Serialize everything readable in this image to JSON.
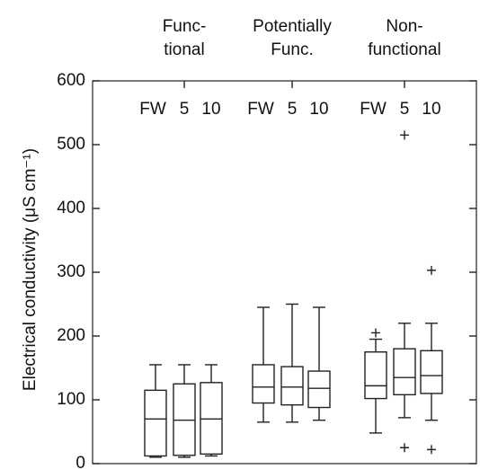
{
  "chart_data": {
    "type": "box",
    "ylabel": "Electrical conductivity (μS cm⁻¹)",
    "ylim": [
      0,
      600
    ],
    "yticks": [
      0,
      100,
      200,
      300,
      400,
      500,
      600
    ],
    "series_names": [
      "FW",
      "5",
      "10"
    ],
    "groups": [
      {
        "label": [
          "Func-",
          "tional"
        ],
        "boxes": [
          {
            "whislo": 10,
            "q1": 12,
            "med": 70,
            "q3": 115,
            "whishi": 155,
            "fliers": []
          },
          {
            "whislo": 10,
            "q1": 13,
            "med": 68,
            "q3": 125,
            "whishi": 155,
            "fliers": []
          },
          {
            "whislo": 12,
            "q1": 15,
            "med": 70,
            "q3": 127,
            "whishi": 155,
            "fliers": []
          }
        ]
      },
      {
        "label": [
          "Potentially",
          "Func."
        ],
        "boxes": [
          {
            "whislo": 65,
            "q1": 95,
            "med": 120,
            "q3": 155,
            "whishi": 245,
            "fliers": []
          },
          {
            "whislo": 65,
            "q1": 92,
            "med": 120,
            "q3": 152,
            "whishi": 250,
            "fliers": []
          },
          {
            "whislo": 68,
            "q1": 88,
            "med": 118,
            "q3": 145,
            "whishi": 245,
            "fliers": []
          }
        ]
      },
      {
        "label": [
          "Non-",
          "functional"
        ],
        "boxes": [
          {
            "whislo": 48,
            "q1": 102,
            "med": 122,
            "q3": 175,
            "whishi": 195,
            "fliers": [
              205
            ]
          },
          {
            "whislo": 72,
            "q1": 108,
            "med": 135,
            "q3": 180,
            "whishi": 220,
            "fliers": [
              515,
              25
            ]
          },
          {
            "whislo": 68,
            "q1": 110,
            "med": 138,
            "q3": 177,
            "whishi": 220,
            "fliers": [
              303,
              22
            ]
          }
        ]
      }
    ]
  }
}
